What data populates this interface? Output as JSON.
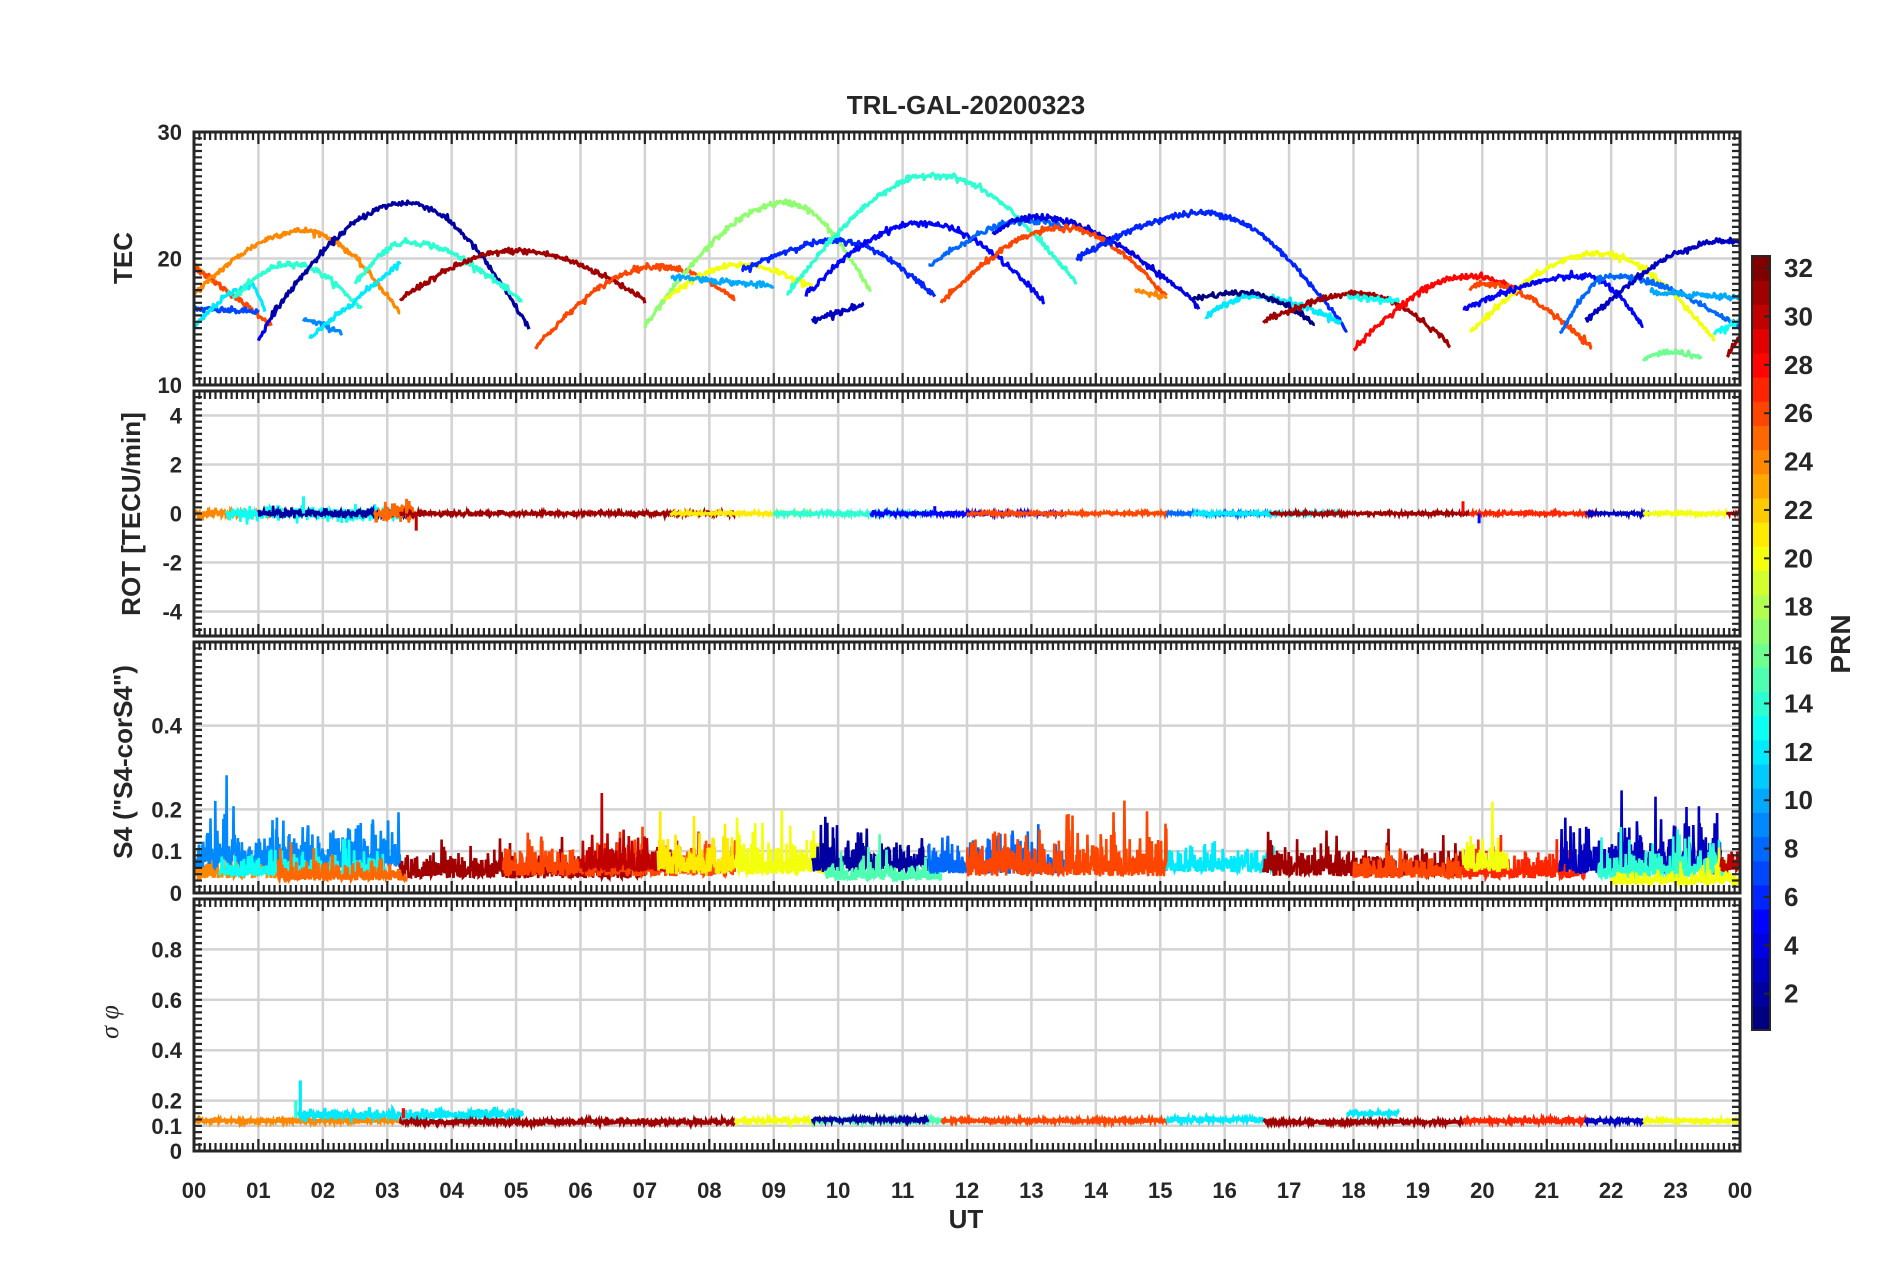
{
  "chart_data": {
    "type": "line",
    "title": "TRL-GAL-20200323",
    "xlabel": "UT",
    "x_tick_labels": [
      "00",
      "01",
      "02",
      "03",
      "04",
      "05",
      "06",
      "07",
      "08",
      "09",
      "10",
      "11",
      "12",
      "13",
      "14",
      "15",
      "16",
      "17",
      "18",
      "19",
      "20",
      "21",
      "22",
      "23",
      "00"
    ],
    "xlim_hours": [
      0,
      24
    ],
    "grid": true,
    "colormap": "jet",
    "colorbar": {
      "label": "PRN",
      "range": [
        1,
        32
      ],
      "tick_labels": [
        "2",
        "4",
        "6",
        "8",
        "10",
        "12",
        "14",
        "16",
        "18",
        "20",
        "22",
        "24",
        "26",
        "28",
        "30",
        "32"
      ],
      "placement": "right"
    },
    "panels": [
      {
        "id": "tec",
        "ylabel": "TEC",
        "ylim": [
          10,
          30
        ],
        "ytick_labels": [
          "10",
          "20",
          "30"
        ],
        "tracks": [
          {
            "prn": 24,
            "start": 0.0,
            "end": 0.6,
            "peak": 19.5,
            "dir": "down",
            "end_val": 17.0
          },
          {
            "prn": 26,
            "start": 0.0,
            "end": 1.2,
            "peak": 19.4,
            "dir": "down",
            "end_val": 14.8
          },
          {
            "prn": 7,
            "start": 0.0,
            "end": 1.0,
            "peak": 16.0,
            "dir": "flat",
            "end_val": 15.8
          },
          {
            "prn": 12,
            "start": 0.0,
            "end": 1.1,
            "peak": 17.8,
            "tpeak": 0.9,
            "start_val": 14.5,
            "end_val": 15.8
          },
          {
            "prn": 24,
            "start": 0.0,
            "end": 3.2,
            "peak": 22.2,
            "tpeak": 1.7,
            "start_val": 17.2,
            "end_val": 15.7
          },
          {
            "prn": 14,
            "start": 0.6,
            "end": 2.6,
            "peak": 19.6,
            "tpeak": 1.5,
            "start_val": 16.8,
            "end_val": 16.0
          },
          {
            "prn": 4,
            "start": 1.0,
            "end": 1.3,
            "peak": 16.2,
            "dir": "up",
            "start_val": 13.6
          },
          {
            "prn": 2,
            "start": 1.2,
            "end": 5.2,
            "peak": 24.4,
            "tpeak": 3.3,
            "start_val": 15.5,
            "end_val": 14.5
          },
          {
            "prn": 9,
            "start": 1.7,
            "end": 2.3,
            "peak": 15.2,
            "dir": "down",
            "start_val": 15.2,
            "end_val": 14.2
          },
          {
            "prn": 12,
            "start": 1.8,
            "end": 3.2,
            "peak": 19.7,
            "dir": "up",
            "start_val": 13.7
          },
          {
            "prn": 14,
            "start": 2.5,
            "end": 5.1,
            "peak": 21.3,
            "tpeak": 3.3,
            "start_val": 18.0,
            "end_val": 16.5
          },
          {
            "prn": 31,
            "start": 3.2,
            "end": 7.0,
            "peak": 20.6,
            "tpeak": 5.0,
            "start_val": 16.8,
            "end_val": 16.8
          },
          {
            "prn": 26,
            "start": 5.3,
            "end": 8.4,
            "peak": 19.4,
            "tpeak": 7.2,
            "start_val": 13.0,
            "end_val": 16.8
          },
          {
            "prn": 17,
            "start": 7.0,
            "end": 10.5,
            "peak": 24.4,
            "tpeak": 9.2,
            "start_val": 14.6,
            "end_val": 17.4
          },
          {
            "prn": 20,
            "start": 7.3,
            "end": 9.6,
            "peak": 19.5,
            "tpeak": 8.5,
            "start_val": 16.8,
            "end_val": 17.7
          },
          {
            "prn": 10,
            "start": 7.4,
            "end": 9.0,
            "peak": 18.6,
            "dir": "flat",
            "end_val": 17.8
          },
          {
            "prn": 6,
            "start": 8.5,
            "end": 11.5,
            "peak": 21.4,
            "tpeak": 10.0,
            "start_val": 19.0,
            "end_val": 17.0
          },
          {
            "prn": 3,
            "start": 9.6,
            "end": 10.4,
            "peak": 16.3,
            "dir": "up",
            "start_val": 15.2
          },
          {
            "prn": 5,
            "start": 9.5,
            "end": 13.2,
            "peak": 22.8,
            "tpeak": 11.3,
            "start_val": 17.2,
            "end_val": 16.6
          },
          {
            "prn": 14,
            "start": 9.2,
            "end": 13.7,
            "peak": 26.6,
            "tpeak": 11.5,
            "start_val": 17.1,
            "end_val": 18.0
          },
          {
            "prn": 8,
            "start": 11.4,
            "end": 13.5,
            "peak": 23.0,
            "tpeak": 13.0,
            "start_val": 19.4,
            "end_val": 22.4
          },
          {
            "prn": 4,
            "start": 12.4,
            "end": 15.6,
            "peak": 23.3,
            "tpeak": 13.0,
            "start_val": 22.0,
            "end_val": 16.2
          },
          {
            "prn": 26,
            "start": 11.6,
            "end": 15.1,
            "peak": 22.4,
            "tpeak": 13.5,
            "start_val": 16.5,
            "end_val": 17.0
          },
          {
            "prn": 24,
            "start": 14.6,
            "end": 15.1,
            "peak": 17.5,
            "dir": "flat",
            "end_val": 17.0
          },
          {
            "prn": 6,
            "start": 13.7,
            "end": 17.9,
            "peak": 23.6,
            "tpeak": 15.7,
            "start_val": 20.0,
            "end_val": 14.3
          },
          {
            "prn": 12,
            "start": 15.7,
            "end": 17.8,
            "peak": 17.0,
            "tpeak": 16.4,
            "start_val": 15.4,
            "end_val": 15.0
          },
          {
            "prn": 1,
            "start": 15.5,
            "end": 17.4,
            "peak": 17.3,
            "tpeak": 16.3,
            "start_val": 16.8,
            "end_val": 14.8
          },
          {
            "prn": 31,
            "start": 16.6,
            "end": 19.5,
            "peak": 17.2,
            "tpeak": 18.1,
            "start_val": 15.0,
            "end_val": 13.2
          },
          {
            "prn": 28,
            "start": 18.0,
            "end": 20.6,
            "peak": 18.6,
            "tpeak": 19.8,
            "start_val": 12.8,
            "end_val": 17.4
          },
          {
            "prn": 13,
            "start": 17.9,
            "end": 18.7,
            "peak": 17.0,
            "dir": "flat",
            "end_val": 16.6
          },
          {
            "prn": 26,
            "start": 19.8,
            "end": 21.7,
            "peak": 18.0,
            "tpeak": 20.0,
            "start_val": 17.6,
            "end_val": 12.9
          },
          {
            "prn": 20,
            "start": 19.8,
            "end": 23.6,
            "peak": 20.4,
            "tpeak": 21.8,
            "start_val": 14.1,
            "end_val": 13.6
          },
          {
            "prn": 5,
            "start": 19.7,
            "end": 22.5,
            "peak": 18.6,
            "tpeak": 21.6,
            "start_val": 16.0,
            "end_val": 14.5
          },
          {
            "prn": 8,
            "start": 21.2,
            "end": 24.0,
            "peak": 18.6,
            "tpeak": 22.0,
            "start_val": 14.0,
            "end_val": 14.5
          },
          {
            "prn": 3,
            "start": 21.6,
            "end": 24.0,
            "peak": 21.4,
            "tpeak": 23.8,
            "start_val": 15.0,
            "end_val": 21.2
          },
          {
            "prn": 10,
            "start": 22.6,
            "end": 24.0,
            "peak": 17.4,
            "dir": "flat",
            "end_val": 16.9
          },
          {
            "prn": 16,
            "start": 22.5,
            "end": 23.4,
            "peak": 12.6,
            "tpeak": 22.9,
            "start_val": 12.0,
            "end_val": 12.2
          },
          {
            "prn": 13,
            "start": 23.6,
            "end": 24.0,
            "peak": 15.1,
            "dir": "up",
            "start_val": 14.0
          },
          {
            "prn": 31,
            "start": 23.8,
            "end": 24.0,
            "peak": 13.8,
            "dir": "up",
            "start_val": 12.3
          }
        ]
      },
      {
        "id": "rot",
        "ylabel": "ROT [TECU/min]",
        "ylim": [
          -5,
          5
        ],
        "ytick_labels": [
          "-4",
          "-2",
          "0",
          "2",
          "4"
        ],
        "baseline": 0.0,
        "noise_sd": 0.08,
        "segments": [
          {
            "prn": 24,
            "start": 0.0,
            "end": 1.4,
            "amp": 0.3
          },
          {
            "prn": 13,
            "start": 0.5,
            "end": 3.2,
            "amp": 0.45
          },
          {
            "prn": 2,
            "start": 1.0,
            "end": 3.3,
            "amp": 0.3
          },
          {
            "prn": 25,
            "start": 2.8,
            "end": 3.4,
            "amp": 0.5
          },
          {
            "prn": 31,
            "start": 3.2,
            "end": 8.4,
            "amp": 0.15
          },
          {
            "prn": 21,
            "start": 7.4,
            "end": 9.6,
            "amp": 0.1
          },
          {
            "prn": 14,
            "start": 9.0,
            "end": 11.5,
            "amp": 0.15
          },
          {
            "prn": 5,
            "start": 10.5,
            "end": 13.5,
            "amp": 0.15
          },
          {
            "prn": 26,
            "start": 12.0,
            "end": 15.1,
            "amp": 0.1
          },
          {
            "prn": 8,
            "start": 15.1,
            "end": 16.7,
            "amp": 0.1
          },
          {
            "prn": 12,
            "start": 15.5,
            "end": 17.8,
            "amp": 0.1
          },
          {
            "prn": 31,
            "start": 16.7,
            "end": 19.8,
            "amp": 0.1
          },
          {
            "prn": 27,
            "start": 19.8,
            "end": 21.8,
            "amp": 0.12
          },
          {
            "prn": 3,
            "start": 21.6,
            "end": 22.6,
            "amp": 0.1
          },
          {
            "prn": 20,
            "start": 22.5,
            "end": 23.8,
            "amp": 0.1
          },
          {
            "prn": 31,
            "start": 23.8,
            "end": 24.0,
            "amp": 0.1
          }
        ],
        "spikes": [
          {
            "t": 1.7,
            "v": 0.7,
            "prn": 13
          },
          {
            "t": 3.3,
            "v": 0.6,
            "prn": 25
          },
          {
            "t": 3.45,
            "v": -0.7,
            "prn": 30
          },
          {
            "t": 19.7,
            "v": 0.5,
            "prn": 28
          },
          {
            "t": 19.95,
            "v": -0.4,
            "prn": 5
          },
          {
            "t": 11.5,
            "v": 0.3,
            "prn": 5
          }
        ]
      },
      {
        "id": "s4",
        "ylabel": "S4 (\"S4-corS4\")",
        "ylim": [
          0,
          0.6
        ],
        "ytick_labels": [
          "0",
          "0.1",
          "0.2",
          "0.4"
        ],
        "segments": [
          {
            "prn": 24,
            "start": 0.0,
            "end": 1.3,
            "base": 0.035,
            "amp": 0.07
          },
          {
            "prn": 9,
            "start": 0.0,
            "end": 3.2,
            "base": 0.06,
            "amp": 0.1
          },
          {
            "prn": 13,
            "start": 0.4,
            "end": 3.0,
            "base": 0.04,
            "amp": 0.06
          },
          {
            "prn": 25,
            "start": 1.3,
            "end": 3.3,
            "base": 0.03,
            "amp": 0.05
          },
          {
            "prn": 31,
            "start": 3.2,
            "end": 7.0,
            "base": 0.035,
            "amp": 0.07
          },
          {
            "prn": 26,
            "start": 4.8,
            "end": 8.4,
            "base": 0.04,
            "amp": 0.08
          },
          {
            "prn": 30,
            "start": 6.0,
            "end": 7.5,
            "base": 0.05,
            "amp": 0.09
          },
          {
            "prn": 21,
            "start": 7.2,
            "end": 8.4,
            "base": 0.045,
            "amp": 0.09
          },
          {
            "prn": 20,
            "start": 8.4,
            "end": 9.8,
            "base": 0.045,
            "amp": 0.1
          },
          {
            "prn": 2,
            "start": 9.6,
            "end": 11.4,
            "base": 0.05,
            "amp": 0.09
          },
          {
            "prn": 15,
            "start": 9.8,
            "end": 11.6,
            "base": 0.03,
            "amp": 0.05
          },
          {
            "prn": 8,
            "start": 11.4,
            "end": 13.5,
            "base": 0.045,
            "amp": 0.09
          },
          {
            "prn": 26,
            "start": 12.0,
            "end": 15.1,
            "base": 0.04,
            "amp": 0.1
          },
          {
            "prn": 12,
            "start": 15.1,
            "end": 16.8,
            "base": 0.05,
            "amp": 0.07
          },
          {
            "prn": 31,
            "start": 16.6,
            "end": 19.7,
            "base": 0.04,
            "amp": 0.08
          },
          {
            "prn": 26,
            "start": 18.0,
            "end": 19.7,
            "base": 0.035,
            "amp": 0.06
          },
          {
            "prn": 27,
            "start": 19.7,
            "end": 21.6,
            "base": 0.035,
            "amp": 0.07
          },
          {
            "prn": 20,
            "start": 19.7,
            "end": 20.4,
            "base": 0.05,
            "amp": 0.08
          },
          {
            "prn": 3,
            "start": 21.2,
            "end": 23.7,
            "base": 0.045,
            "amp": 0.12
          },
          {
            "prn": 14,
            "start": 21.8,
            "end": 23.8,
            "base": 0.035,
            "amp": 0.08
          },
          {
            "prn": 20,
            "start": 22.0,
            "end": 24.0,
            "base": 0.02,
            "amp": 0.04
          },
          {
            "prn": 30,
            "start": 23.7,
            "end": 24.0,
            "base": 0.05,
            "amp": 0.07
          }
        ]
      },
      {
        "id": "sigma",
        "ylabel": "σ φ",
        "ylim": [
          0,
          1
        ],
        "ytick_labels": [
          "0",
          "0.1",
          "0.2",
          "0.4",
          "0.6",
          "0.8"
        ],
        "segments": [
          {
            "prn": 24,
            "start": 0.0,
            "end": 3.2,
            "base": 0.12,
            "amp": 0.01
          },
          {
            "prn": 12,
            "start": 1.6,
            "end": 5.1,
            "base": 0.145,
            "amp": 0.02
          },
          {
            "prn": 31,
            "start": 3.2,
            "end": 8.4,
            "base": 0.115,
            "amp": 0.01
          },
          {
            "prn": 20,
            "start": 8.4,
            "end": 9.8,
            "base": 0.12,
            "amp": 0.01
          },
          {
            "prn": 15,
            "start": 9.6,
            "end": 11.6,
            "base": 0.12,
            "amp": 0.01
          },
          {
            "prn": 2,
            "start": 9.6,
            "end": 11.4,
            "base": 0.125,
            "amp": 0.008
          },
          {
            "prn": 26,
            "start": 11.6,
            "end": 15.1,
            "base": 0.12,
            "amp": 0.008
          },
          {
            "prn": 12,
            "start": 15.1,
            "end": 16.6,
            "base": 0.125,
            "amp": 0.01
          },
          {
            "prn": 31,
            "start": 16.6,
            "end": 19.7,
            "base": 0.115,
            "amp": 0.008
          },
          {
            "prn": 12,
            "start": 17.9,
            "end": 18.7,
            "base": 0.15,
            "amp": 0.008
          },
          {
            "prn": 27,
            "start": 19.7,
            "end": 21.6,
            "base": 0.12,
            "amp": 0.01
          },
          {
            "prn": 3,
            "start": 21.6,
            "end": 22.5,
            "base": 0.12,
            "amp": 0.008
          },
          {
            "prn": 20,
            "start": 22.5,
            "end": 24.0,
            "base": 0.12,
            "amp": 0.008
          }
        ],
        "spikes": [
          {
            "t": 1.65,
            "v": 0.28,
            "prn": 12
          },
          {
            "t": 1.58,
            "v": 0.2,
            "prn": 14
          },
          {
            "t": 3.25,
            "v": 0.17,
            "prn": 28
          }
        ]
      }
    ]
  }
}
